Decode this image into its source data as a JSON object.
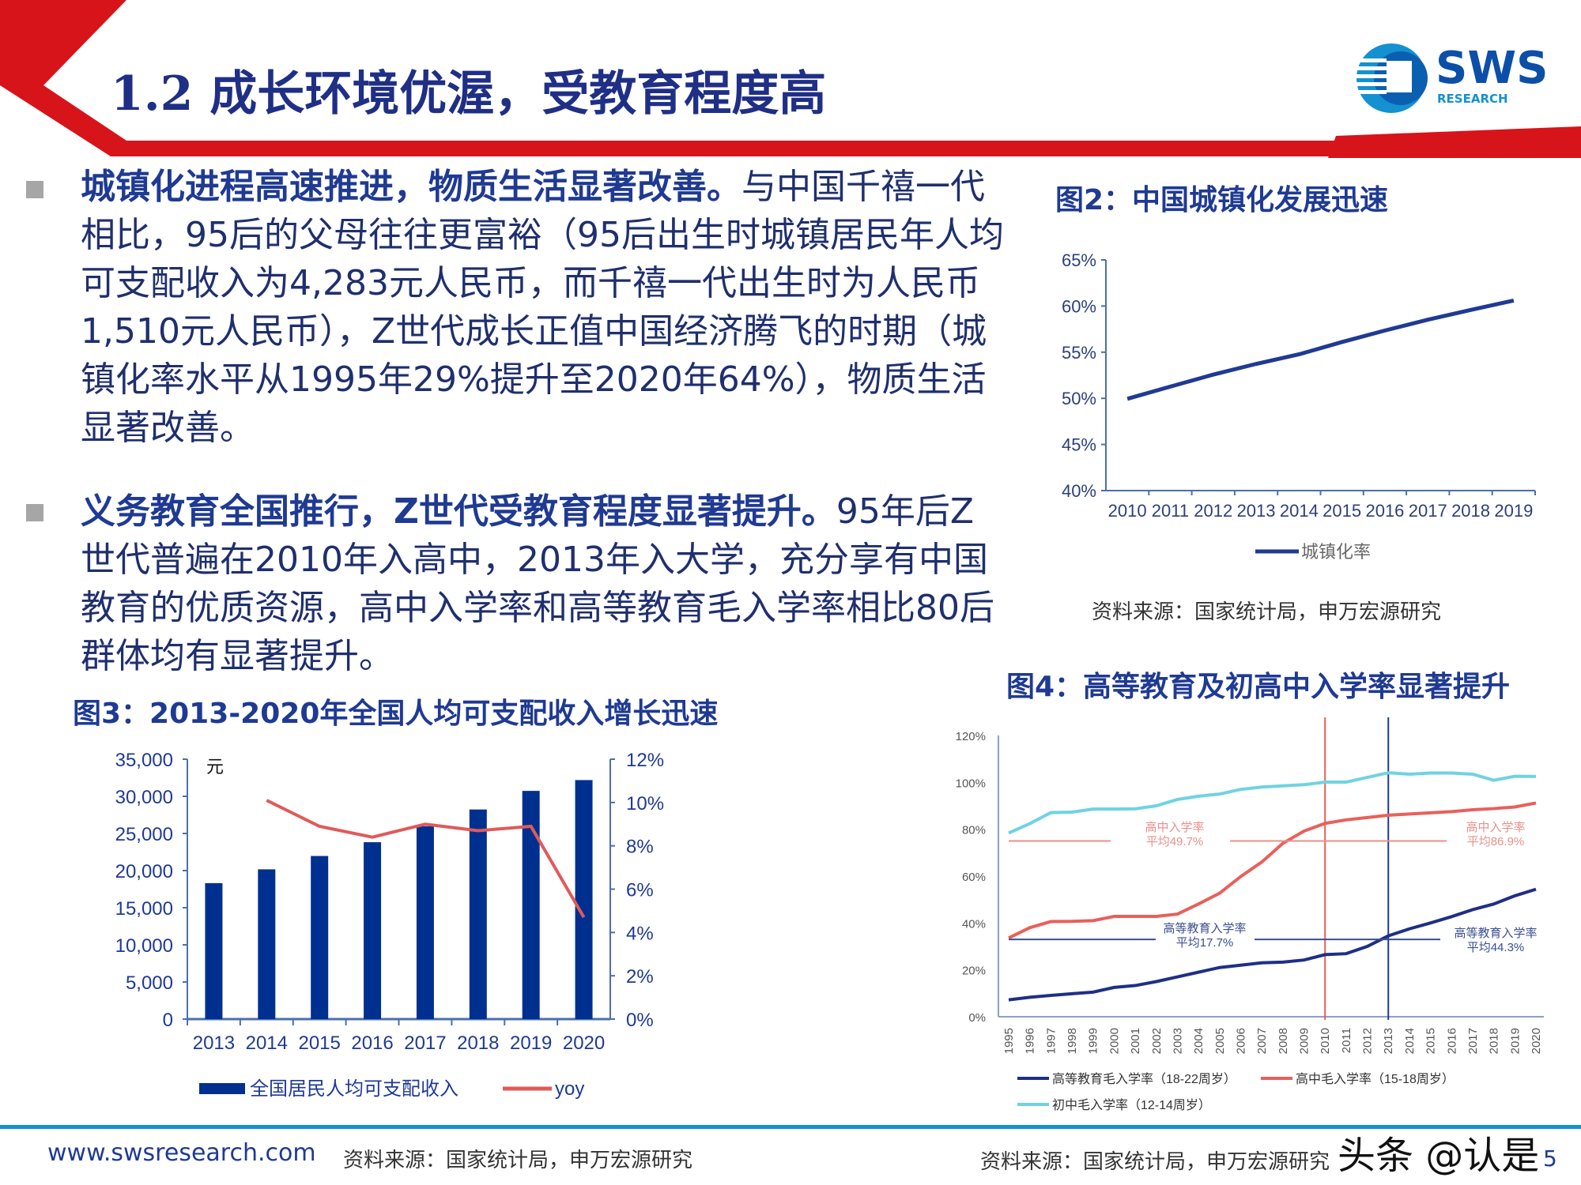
{
  "header": {
    "title": "1.2 成长环境优渥，受教育程度高",
    "logo_text": "SWS",
    "logo_sub": "RESEARCH",
    "accent_red": "#d7141a",
    "accent_blue": "#1391d0"
  },
  "bullets": [
    {
      "bold": "城镇化进程高速推进，物质生活显著改善。",
      "text": "与中国千禧一代相比，95后的父母往往更富裕（95后出生时城镇居民年人均可支配收入为4,283元人民币，而千禧一代出生时为人民币1,510元人民币），Z世代成长正值中国经济腾飞的时期（城镇化率水平从1995年29%提升至2020年64%），物质生活显著改善。"
    },
    {
      "bold": "义务教育全国推行，Z世代受教育程度显著提升。",
      "text": "95年后Z世代普遍在2010年入高中，2013年入大学，充分享有中国教育的优质资源，高中入学率和高等教育毛入学率相比80后群体均有显著提升。"
    }
  ],
  "figures": {
    "fig2": {
      "title": "图2：中国城镇化发展迅速",
      "source": "资料来源：国家统计局，申万宏源研究"
    },
    "fig3": {
      "title": "图3：2013-2020年全国人均可支配收入增长迅速",
      "source": "资料来源：国家统计局，申万宏源研究"
    },
    "fig4": {
      "title": "图4：高等教育及初高中入学率显著提升",
      "source": "资料来源：国家统计局，申万宏源研究"
    }
  },
  "chart_data": [
    {
      "id": "fig2",
      "type": "line",
      "categories": [
        "2010",
        "2011",
        "2012",
        "2013",
        "2014",
        "2015",
        "2016",
        "2017",
        "2018",
        "2019"
      ],
      "series": [
        {
          "name": "城镇化率",
          "values": [
            49.95,
            51.27,
            52.57,
            53.73,
            54.77,
            56.1,
            57.35,
            58.52,
            59.58,
            60.6
          ],
          "color": "#1f3a93"
        }
      ],
      "ylim": [
        40,
        65
      ],
      "yticks": [
        "40%",
        "45%",
        "50%",
        "55%",
        "60%",
        "65%"
      ],
      "legend": "bottom",
      "grid": false
    },
    {
      "id": "fig3",
      "type": "bar+line",
      "categories": [
        "2013",
        "2014",
        "2015",
        "2016",
        "2017",
        "2018",
        "2019",
        "2020"
      ],
      "unit_label": "元",
      "series": [
        {
          "name": "全国居民人均可支配收入",
          "type": "bar",
          "axis": "left",
          "values": [
            18311,
            20167,
            21966,
            23821,
            25974,
            28228,
            30733,
            32189
          ],
          "color": "#00308f"
        },
        {
          "name": "yoy",
          "type": "line",
          "axis": "right",
          "values": [
            null,
            10.1,
            8.9,
            8.4,
            9.0,
            8.7,
            8.9,
            4.7
          ],
          "color": "#e05a5a"
        }
      ],
      "ylim_left": [
        0,
        35000
      ],
      "yticks_left": [
        "0",
        "5,000",
        "10,000",
        "15,000",
        "20,000",
        "25,000",
        "30,000",
        "35,000"
      ],
      "ylim_right": [
        0,
        12
      ],
      "yticks_right": [
        "0%",
        "2%",
        "4%",
        "6%",
        "8%",
        "10%",
        "12%"
      ],
      "legend": "bottom",
      "grid": false
    },
    {
      "id": "fig4",
      "type": "line",
      "categories": [
        "1995",
        "1996",
        "1997",
        "1998",
        "1999",
        "2000",
        "2001",
        "2002",
        "2003",
        "2004",
        "2005",
        "2006",
        "2007",
        "2008",
        "2009",
        "2010",
        "2011",
        "2012",
        "2013",
        "2014",
        "2015",
        "2016",
        "2017",
        "2018",
        "2019",
        "2020"
      ],
      "series": [
        {
          "name": "高等教育毛入学率（18-22周岁）",
          "values": [
            7.2,
            8.3,
            9.1,
            9.8,
            10.5,
            12.5,
            13.3,
            15.0,
            17.0,
            19.0,
            21.0,
            22.0,
            23.0,
            23.3,
            24.2,
            26.5,
            26.9,
            30.0,
            34.5,
            37.5,
            40.0,
            42.7,
            45.7,
            48.1,
            51.6,
            54.4
          ],
          "color": "#1f2f86"
        },
        {
          "name": "高中毛入学率（15-18周岁）",
          "values": [
            33.6,
            38.0,
            40.6,
            40.7,
            41.0,
            42.8,
            42.8,
            42.8,
            43.8,
            48.1,
            52.7,
            59.8,
            66.0,
            74.0,
            79.2,
            82.5,
            84.0,
            85.0,
            86.0,
            86.5,
            87.0,
            87.5,
            88.3,
            88.8,
            89.5,
            91.2
          ],
          "color": "#e8605a"
        },
        {
          "name": "初中毛入学率（12-14周岁）",
          "values": [
            78.4,
            82.4,
            87.1,
            87.3,
            88.6,
            88.6,
            88.7,
            90.0,
            92.7,
            94.1,
            95.0,
            97.0,
            98.0,
            98.5,
            99.0,
            100.1,
            100.1,
            102.1,
            104.1,
            103.5,
            104.0,
            104.0,
            103.5,
            100.9,
            102.6,
            102.5
          ],
          "color": "#6fd3e0"
        }
      ],
      "ylim": [
        0,
        120
      ],
      "yticks": [
        "0%",
        "20%",
        "40%",
        "60%",
        "80%",
        "100%",
        "120%"
      ],
      "reference_lines": [
        {
          "x": "2010",
          "color": "#e8605a"
        },
        {
          "x": "2013",
          "color": "#1f3a93"
        }
      ],
      "annotations": [
        {
          "line1": "高中入学率",
          "line2": "平均49.7%",
          "color": "#e8908a"
        },
        {
          "line1": "高中入学率",
          "line2": "平均86.9%",
          "color": "#e8908a"
        },
        {
          "line1": "高等教育入学率",
          "line2": "平均17.7%",
          "color": "#3a4f8f"
        },
        {
          "line1": "高等教育入学率",
          "line2": "平均44.3%",
          "color": "#3a4f8f"
        }
      ],
      "legend": "bottom",
      "grid": false
    }
  ],
  "footer": {
    "website": "www.swsresearch.com",
    "watermark": "头条 @认是",
    "page_number": "5"
  }
}
